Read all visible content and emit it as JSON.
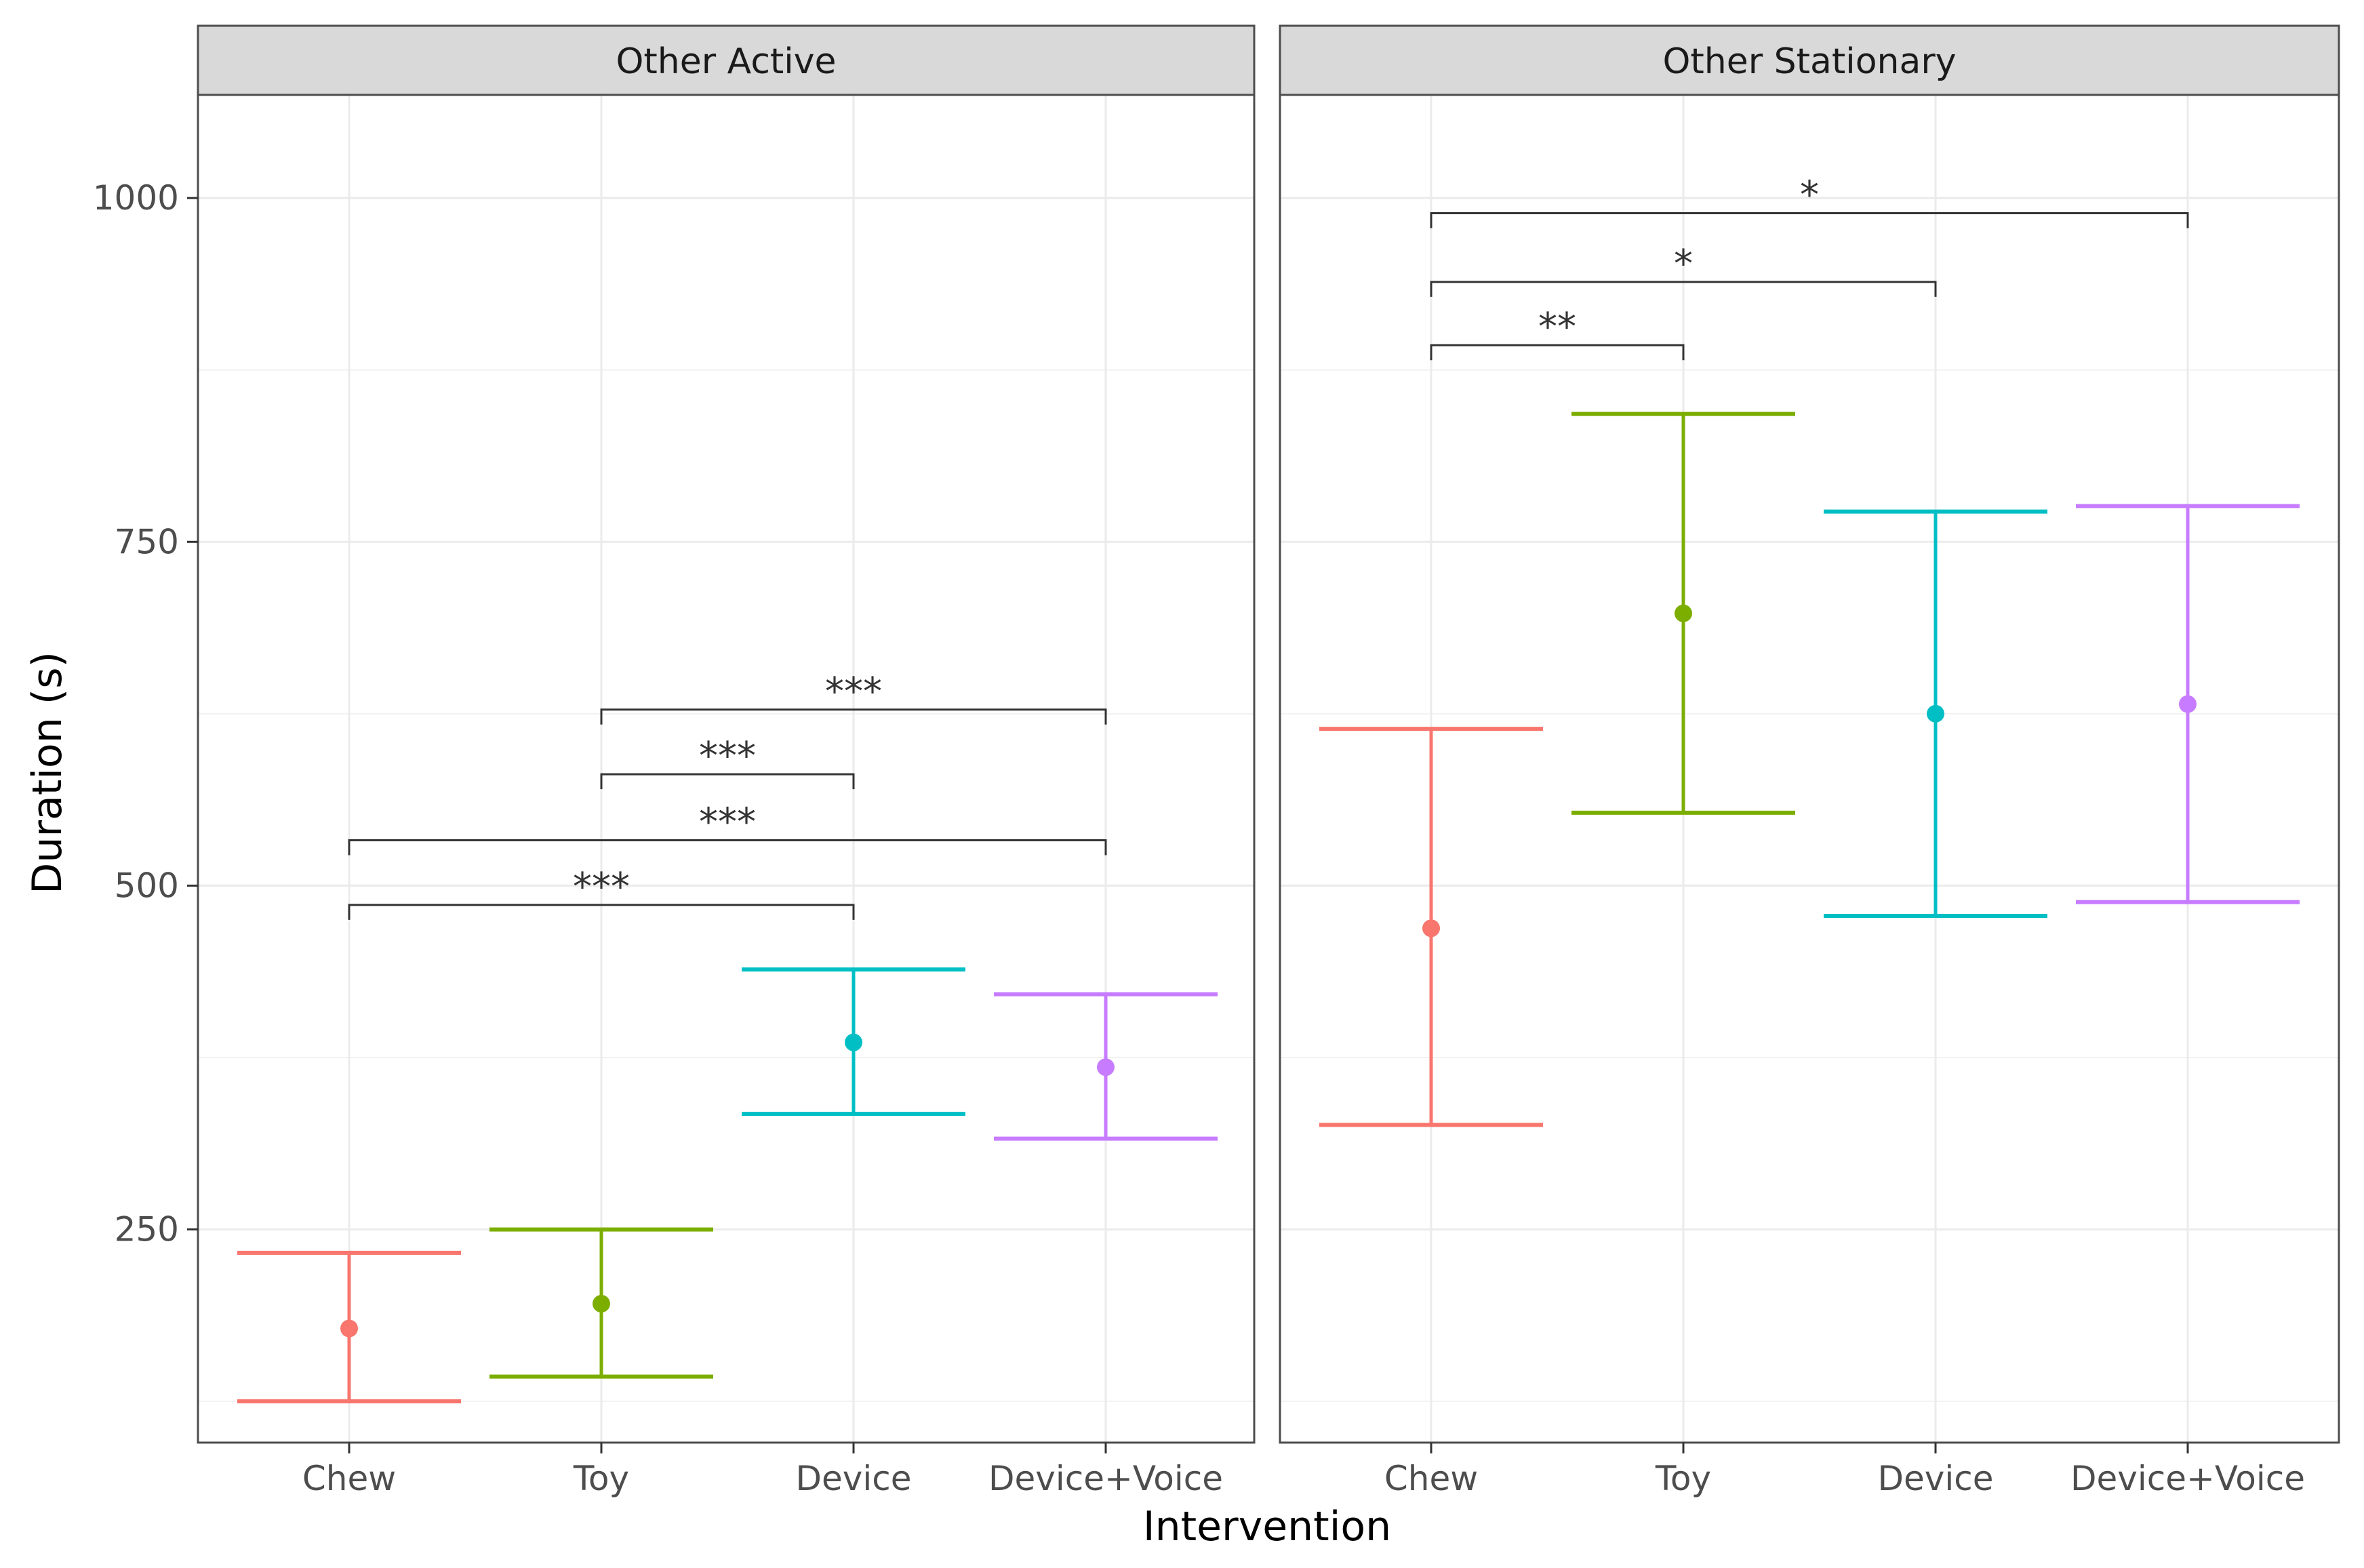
{
  "chart_data": {
    "type": "scatter",
    "subtype": "point-range with error bars, faceted",
    "xlabel": "Intervention",
    "ylabel": "Duration (s)",
    "categories": [
      "Chew",
      "Toy",
      "Device",
      "Device+Voice"
    ],
    "ylim": [
      95,
      1075
    ],
    "yticks": [
      250,
      500,
      750,
      1000
    ],
    "grid": true,
    "legend": "none",
    "colors": {
      "Chew": "#F8766D",
      "Toy": "#7CAE00",
      "Device": "#00BFC4",
      "Device+Voice": "#C77CFF"
    },
    "facets": [
      {
        "title": "Other Active",
        "points": [
          {
            "category": "Chew",
            "mean": 178,
            "lower": 125,
            "upper": 233
          },
          {
            "category": "Toy",
            "mean": 196,
            "lower": 143,
            "upper": 250
          },
          {
            "category": "Device",
            "mean": 386,
            "lower": 334,
            "upper": 439
          },
          {
            "category": "Device+Voice",
            "mean": 368,
            "lower": 316,
            "upper": 421
          }
        ],
        "comparisons": [
          {
            "from": "Chew",
            "to": "Device",
            "y": 486,
            "label": "***"
          },
          {
            "from": "Chew",
            "to": "Device+Voice",
            "y": 533,
            "label": "***"
          },
          {
            "from": "Toy",
            "to": "Device",
            "y": 581,
            "label": "***"
          },
          {
            "from": "Toy",
            "to": "Device+Voice",
            "y": 628,
            "label": "***"
          }
        ]
      },
      {
        "title": "Other Stationary",
        "points": [
          {
            "category": "Chew",
            "mean": 469,
            "lower": 326,
            "upper": 614
          },
          {
            "category": "Toy",
            "mean": 698,
            "lower": 553,
            "upper": 843
          },
          {
            "category": "Device",
            "mean": 625,
            "lower": 478,
            "upper": 772
          },
          {
            "category": "Device+Voice",
            "mean": 632,
            "lower": 488,
            "upper": 776
          }
        ],
        "comparisons": [
          {
            "from": "Chew",
            "to": "Toy",
            "y": 893,
            "label": "**"
          },
          {
            "from": "Chew",
            "to": "Device",
            "y": 939,
            "label": "*"
          },
          {
            "from": "Chew",
            "to": "Device+Voice",
            "y": 989,
            "label": "*"
          }
        ]
      }
    ]
  }
}
